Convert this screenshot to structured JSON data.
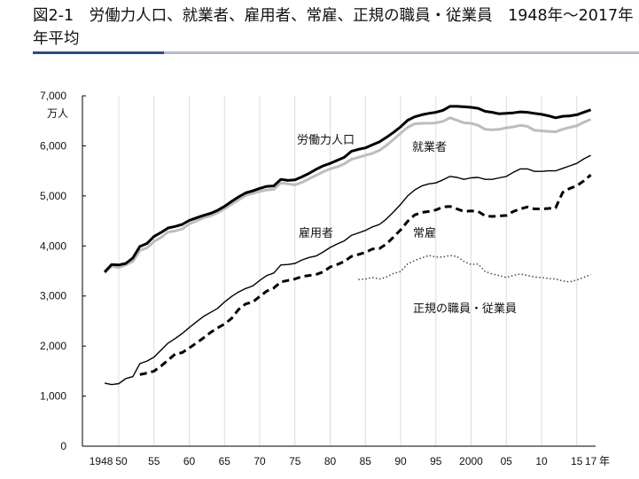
{
  "title": "図2-1　労働力人口、就業者、雇用者、常雇、正規の職員・従業員　1948年～2017年　年平均",
  "chart_data": {
    "type": "line",
    "title": "図2-1　労働力人口、就業者、雇用者、常雇、正規の職員・従業員　1948年～2017年　年平均",
    "ylabel": "万人",
    "xlabel": "年",
    "ylim": [
      0,
      7000
    ],
    "xlim": [
      1948,
      2017
    ],
    "grid": "vertical",
    "yticks": [
      "0",
      "1,000",
      "2,000",
      "3,000",
      "4,000",
      "5,000",
      "6,000",
      "7,000"
    ],
    "xticks": [
      "1948",
      "50",
      "55",
      "60",
      "65",
      "70",
      "75",
      "80",
      "85",
      "90",
      "95",
      "2000",
      "05",
      "10",
      "15",
      "17"
    ],
    "x_unit_label": "年",
    "y_unit_label": "万人",
    "series": [
      {
        "name": "労働力人口",
        "style": "thick-black",
        "start": 1948,
        "values": [
          3480,
          3630,
          3620,
          3650,
          3760,
          3990,
          4050,
          4190,
          4270,
          4360,
          4390,
          4430,
          4510,
          4560,
          4610,
          4650,
          4710,
          4790,
          4890,
          4980,
          5060,
          5100,
          5150,
          5190,
          5200,
          5330,
          5310,
          5320,
          5380,
          5450,
          5530,
          5600,
          5650,
          5710,
          5770,
          5890,
          5930,
          5960,
          6020,
          6080,
          6170,
          6270,
          6380,
          6510,
          6580,
          6620,
          6650,
          6670,
          6710,
          6790,
          6790,
          6780,
          6770,
          6750,
          6690,
          6670,
          6640,
          6650,
          6660,
          6680,
          6670,
          6650,
          6630,
          6600,
          6560,
          6590,
          6600,
          6620,
          6670,
          6720
        ]
      },
      {
        "name": "就業者",
        "style": "grey",
        "start": 1948,
        "values": [
          3460,
          3600,
          3570,
          3620,
          3690,
          3910,
          3960,
          4090,
          4170,
          4280,
          4300,
          4340,
          4440,
          4500,
          4560,
          4600,
          4660,
          4740,
          4830,
          4920,
          5010,
          5050,
          5090,
          5120,
          5130,
          5260,
          5240,
          5220,
          5270,
          5340,
          5410,
          5480,
          5540,
          5580,
          5640,
          5730,
          5770,
          5810,
          5850,
          5910,
          6010,
          6130,
          6250,
          6370,
          6440,
          6450,
          6450,
          6460,
          6490,
          6560,
          6510,
          6460,
          6450,
          6410,
          6330,
          6320,
          6330,
          6360,
          6380,
          6410,
          6390,
          6310,
          6300,
          6290,
          6280,
          6330,
          6370,
          6400,
          6470,
          6530
        ]
      },
      {
        "name": "雇用者",
        "style": "thin-black",
        "start": 1948,
        "values": [
          1260,
          1230,
          1250,
          1350,
          1390,
          1650,
          1700,
          1780,
          1920,
          2060,
          2150,
          2250,
          2370,
          2480,
          2590,
          2670,
          2750,
          2880,
          2990,
          3080,
          3150,
          3200,
          3310,
          3410,
          3460,
          3620,
          3630,
          3650,
          3720,
          3770,
          3800,
          3880,
          3970,
          4040,
          4100,
          4210,
          4260,
          4310,
          4380,
          4430,
          4540,
          4680,
          4830,
          5000,
          5120,
          5200,
          5240,
          5260,
          5320,
          5390,
          5370,
          5330,
          5360,
          5370,
          5330,
          5330,
          5360,
          5390,
          5470,
          5540,
          5540,
          5490,
          5490,
          5500,
          5500,
          5550,
          5600,
          5650,
          5740,
          5810
        ]
      },
      {
        "name": "常雇",
        "style": "dashed",
        "start": 1953,
        "values": [
          1430,
          1460,
          1500,
          1600,
          1720,
          1840,
          1870,
          1960,
          2060,
          2160,
          2270,
          2360,
          2440,
          2550,
          2730,
          2840,
          2880,
          2990,
          3100,
          3160,
          3280,
          3310,
          3340,
          3390,
          3410,
          3430,
          3480,
          3580,
          3630,
          3690,
          3790,
          3830,
          3870,
          3940,
          3950,
          4040,
          4180,
          4320,
          4490,
          4620,
          4670,
          4690,
          4720,
          4780,
          4790,
          4740,
          4690,
          4700,
          4690,
          4600,
          4590,
          4600,
          4610,
          4690,
          4740,
          4780,
          4740,
          4740,
          4750,
          4760,
          5070,
          5150,
          5200,
          5300,
          5420
        ]
      },
      {
        "name": "正規の職員・従業員",
        "style": "dotted",
        "start": 1984,
        "values": [
          3330,
          3340,
          3370,
          3340,
          3380,
          3450,
          3490,
          3640,
          3710,
          3760,
          3810,
          3780,
          3780,
          3810,
          3790,
          3690,
          3630,
          3640,
          3490,
          3440,
          3410,
          3370,
          3410,
          3440,
          3410,
          3380,
          3370,
          3350,
          3340,
          3300,
          3280,
          3320,
          3370,
          3430
        ]
      }
    ]
  }
}
